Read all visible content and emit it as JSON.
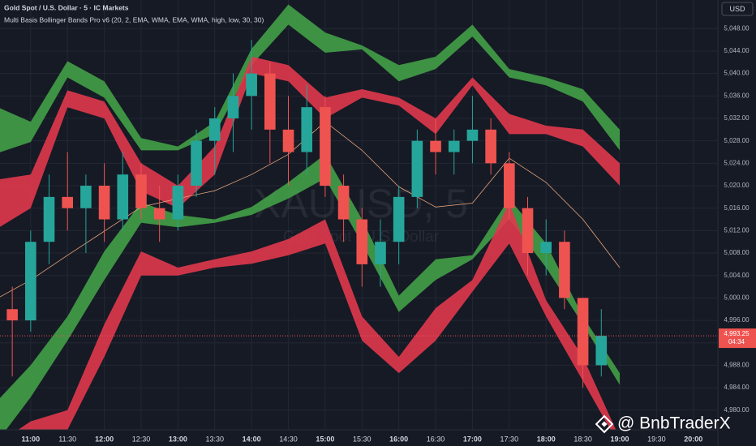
{
  "chart_data": {
    "type": "candlestick",
    "title": "Gold Spot / U.S. Dollar · 5 · IC Markets",
    "subtitle": "Multi Basis Bollinger Bands Pro v6 (20, 2, EMA, WMA, EMA, WMA, high, low, 30, 30)",
    "watermark": "XAUUSD, 5",
    "watermark_subtitle": "Gold Spot / U.S. Dollar",
    "currency": "USD",
    "credit": "@ BnbTraderX",
    "up_color": "#26a69a",
    "down_color": "#ef5350",
    "x": [
      "10:45",
      "11:00",
      "11:15",
      "11:30",
      "11:45",
      "12:00",
      "12:15",
      "12:30",
      "12:45",
      "13:00",
      "13:15",
      "13:30",
      "13:45",
      "14:00",
      "14:15",
      "14:30",
      "14:45",
      "15:00",
      "15:15",
      "15:30",
      "15:45",
      "16:00",
      "16:15",
      "16:30",
      "16:45",
      "17:00",
      "17:15",
      "17:30",
      "17:45",
      "18:00",
      "18:15",
      "18:30",
      "18:45"
    ],
    "open": [
      4998,
      4996,
      5010,
      5018,
      5016,
      5020,
      5014,
      5022,
      5016,
      5014,
      5020,
      5028,
      5032,
      5036,
      5040,
      5030,
      5026,
      5034,
      5020,
      5014,
      5006,
      5010,
      5018,
      5028,
      5026,
      5028,
      5030,
      5024,
      5016,
      5008,
      5010,
      5000,
      4988
    ],
    "high": [
      5002,
      5012,
      5022,
      5026,
      5022,
      5024,
      5026,
      5024,
      5020,
      5022,
      5030,
      5034,
      5040,
      5046,
      5042,
      5036,
      5038,
      5036,
      5022,
      5016,
      5014,
      5020,
      5030,
      5032,
      5030,
      5036,
      5032,
      5026,
      5018,
      5014,
      5012,
      5000,
      4998
    ],
    "low": [
      4986,
      4994,
      5006,
      5012,
      5008,
      5010,
      5012,
      5014,
      5010,
      5012,
      5018,
      5022,
      5026,
      5030,
      5024,
      5020,
      5022,
      5018,
      5010,
      5002,
      5002,
      5006,
      5016,
      5022,
      5022,
      5024,
      5022,
      5014,
      5004,
      5004,
      4998,
      4984,
      4986
    ],
    "close": [
      4996,
      5010,
      5018,
      5016,
      5020,
      5014,
      5022,
      5016,
      5014,
      5020,
      5028,
      5032,
      5036,
      5040,
      5030,
      5026,
      5034,
      5020,
      5014,
      5006,
      5010,
      5018,
      5028,
      5026,
      5028,
      5030,
      5024,
      5016,
      5008,
      5010,
      5000,
      4988,
      4993.25
    ],
    "overlays": {
      "x": [
        "10:30",
        "11:00",
        "11:30",
        "12:00",
        "12:30",
        "13:00",
        "13:30",
        "14:00",
        "14:30",
        "15:00",
        "15:30",
        "16:00",
        "16:30",
        "17:00",
        "17:30",
        "18:00",
        "18:30",
        "19:00"
      ],
      "bands": [
        {
          "color": "#43a047",
          "upper": [
            5034.3,
            5031.4,
            5042.2,
            5038.6,
            5028.5,
            5027,
            5031.4,
            5044.4,
            5052.3,
            5047.3,
            5045,
            5041.5,
            5043,
            5048.7,
            5040.8,
            5039.3,
            5037.2,
            5030
          ],
          "lower": [
            5025.6,
            5027.8,
            5039.3,
            5035.7,
            5026.3,
            5026.3,
            5029.2,
            5041.5,
            5048.7,
            5043.7,
            5044.3,
            5038.6,
            5040.8,
            5046.6,
            5039.3,
            5037.9,
            5035,
            5026.3
          ]
        },
        {
          "color": "#e0384d",
          "upper": [
            5021,
            5022,
            5037,
            5035,
            5024,
            5020,
            5027,
            5043,
            5041.5,
            5035.7,
            5037.2,
            5035.7,
            5032,
            5039.3,
            5032.8,
            5030.7,
            5030,
            5024
          ],
          "lower": [
            5012,
            5016,
            5034,
            5032,
            5019,
            5016,
            5022,
            5040,
            5038.6,
            5032,
            5035.7,
            5034.3,
            5029.2,
            5037.9,
            5029.2,
            5029.2,
            5027,
            5020
          ]
        },
        {
          "color": "#43a047",
          "upper": [
            4981,
            4988,
            4996.7,
            5008.3,
            5017,
            5014.8,
            5014,
            5016.2,
            5020.6,
            5025.6,
            5014,
            5000.4,
            5006.9,
            5007.6,
            5017.7,
            5009.7,
            4996.7,
            4986.6
          ],
          "lower": [
            4973.6,
            4982.3,
            4992.4,
            5003.2,
            5013.4,
            5012.6,
            5013.4,
            5014.8,
            5017.7,
            5021.3,
            5009.7,
            4997.5,
            5003.2,
            5006.9,
            5014,
            5005.4,
            4995.3,
            4984.5
          ]
        },
        {
          "color": "#e0384d",
          "upper": [
            4973.6,
            4978,
            4980,
            4995.3,
            5008.3,
            5005.4,
            5006.9,
            5008.3,
            5010.5,
            5014,
            4996.7,
            4989.5,
            4998.2,
            5003.2,
            5017,
            4999.6,
            4989.5,
            4975
          ],
          "lower": [
            4972,
            4973.6,
            4976.5,
            4989.5,
            5004,
            5004,
            5005.4,
            5006.1,
            5007.6,
            5009.7,
            4992.4,
            4986.6,
            4992.4,
            5001.1,
            5009.7,
            4996.7,
            4985.2,
            4973.6
          ]
        }
      ],
      "basis": {
        "color": "#e8a57a",
        "values": [
          4999.6,
          5003.2,
          5007.6,
          5011.9,
          5016.2,
          5017.7,
          5019.1,
          5022,
          5025.6,
          5031.4,
          5026.3,
          5019.8,
          5016.2,
          5016.9,
          5024.9,
          5020.6,
          5014,
          5005.4
        ]
      }
    },
    "last_price": {
      "value": 4993.25,
      "label": "4,993.25"
    },
    "countdown": "04:34",
    "xlim": [
      "10:35",
      "20:20"
    ],
    "xticks": [
      "11:00",
      "11:30",
      "12:00",
      "12:30",
      "13:00",
      "13:30",
      "14:00",
      "14:30",
      "15:00",
      "15:30",
      "16:00",
      "16:30",
      "17:00",
      "17:30",
      "18:00",
      "18:30",
      "19:00",
      "19:30",
      "20:00"
    ],
    "ylim": [
      4976.5,
      5053.1
    ],
    "yticks": [
      {
        "value": 4980,
        "label": "4,980.00"
      },
      {
        "value": 4984,
        "label": "4,984.00"
      },
      {
        "value": 4988,
        "label": "4,988.00"
      },
      {
        "value": 4992,
        "label": "4,992.00"
      },
      {
        "value": 4996,
        "label": "4,996.00"
      },
      {
        "value": 5000,
        "label": "5,000.00"
      },
      {
        "value": 5004,
        "label": "5,004.00"
      },
      {
        "value": 5008,
        "label": "5,008.00"
      },
      {
        "value": 5012,
        "label": "5,012.00"
      },
      {
        "value": 5016,
        "label": "5,016.00"
      },
      {
        "value": 5020,
        "label": "5,020.00"
      },
      {
        "value": 5024,
        "label": "5,024.00"
      },
      {
        "value": 5028,
        "label": "5,028.00"
      },
      {
        "value": 5032,
        "label": "5,032.00"
      },
      {
        "value": 5036,
        "label": "5,036.00"
      },
      {
        "value": 5040,
        "label": "5,040.00"
      },
      {
        "value": 5044,
        "label": "5,044.00"
      },
      {
        "value": 5048,
        "label": "5,048.00"
      }
    ],
    "grid": true
  }
}
